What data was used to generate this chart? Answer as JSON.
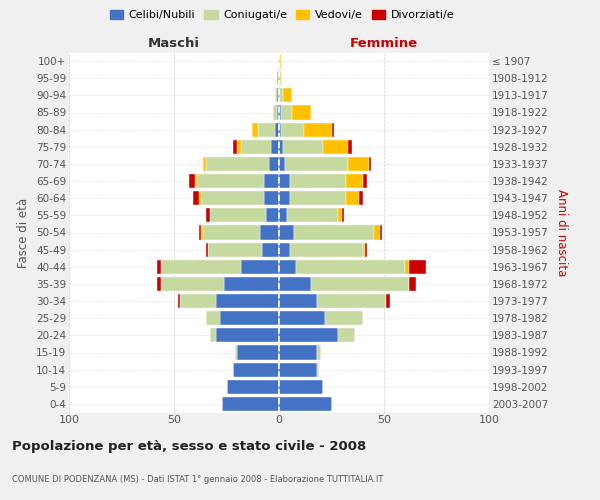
{
  "age_groups": [
    "100+",
    "95-99",
    "90-94",
    "85-89",
    "80-84",
    "75-79",
    "70-74",
    "65-69",
    "60-64",
    "55-59",
    "50-54",
    "45-49",
    "40-44",
    "35-39",
    "30-34",
    "25-29",
    "20-24",
    "15-19",
    "10-14",
    "5-9",
    "0-4"
  ],
  "birth_years": [
    "≤ 1907",
    "1908-1912",
    "1913-1917",
    "1918-1922",
    "1923-1927",
    "1928-1932",
    "1933-1937",
    "1938-1942",
    "1943-1947",
    "1948-1952",
    "1953-1957",
    "1958-1962",
    "1963-1967",
    "1968-1972",
    "1973-1977",
    "1978-1982",
    "1983-1987",
    "1988-1992",
    "1993-1997",
    "1998-2002",
    "2003-2007"
  ],
  "colors": {
    "celibi": "#4472c4",
    "coniugati": "#c5d9a0",
    "vedovi": "#ffc000",
    "divorziati": "#cc0000"
  },
  "maschi": {
    "celibi": [
      0,
      1,
      1,
      1,
      2,
      4,
      5,
      7,
      7,
      6,
      9,
      8,
      18,
      26,
      30,
      28,
      30,
      20,
      22,
      25,
      27
    ],
    "coniugati": [
      0,
      0,
      1,
      2,
      8,
      14,
      30,
      32,
      30,
      27,
      27,
      26,
      38,
      30,
      17,
      7,
      3,
      1,
      0,
      0,
      0
    ],
    "vedovi": [
      0,
      0,
      0,
      0,
      3,
      2,
      1,
      1,
      1,
      0,
      1,
      0,
      0,
      0,
      0,
      0,
      0,
      0,
      0,
      0,
      0
    ],
    "divorziati": [
      0,
      0,
      0,
      0,
      0,
      2,
      0,
      3,
      3,
      2,
      1,
      1,
      2,
      2,
      1,
      0,
      0,
      0,
      0,
      0,
      0
    ]
  },
  "femmine": {
    "celibi": [
      0,
      0,
      0,
      1,
      1,
      2,
      3,
      5,
      5,
      4,
      7,
      5,
      8,
      15,
      18,
      22,
      28,
      18,
      18,
      21,
      25
    ],
    "coniugati": [
      0,
      0,
      2,
      5,
      11,
      19,
      30,
      27,
      27,
      24,
      38,
      35,
      52,
      47,
      33,
      18,
      8,
      2,
      1,
      0,
      0
    ],
    "vedovi": [
      1,
      1,
      4,
      9,
      13,
      12,
      10,
      8,
      6,
      2,
      3,
      1,
      2,
      0,
      0,
      0,
      0,
      0,
      0,
      0,
      0
    ],
    "divorziati": [
      0,
      0,
      0,
      0,
      1,
      2,
      1,
      2,
      2,
      1,
      1,
      1,
      8,
      3,
      2,
      0,
      0,
      0,
      0,
      0,
      0
    ]
  },
  "xlim": 100,
  "title": "Popolazione per età, sesso e stato civile - 2008",
  "subtitle": "COMUNE DI PODENZANA (MS) - Dati ISTAT 1° gennaio 2008 - Elaborazione TUTTITALIA.IT",
  "ylabel_left": "Fasce di età",
  "ylabel_right": "Anni di nascita",
  "xlabel_maschi": "Maschi",
  "xlabel_femmine": "Femmine",
  "legend_labels": [
    "Celibi/Nubili",
    "Coniugati/e",
    "Vedovi/e",
    "Divorziati/e"
  ],
  "bg_color": "#f0f0f0",
  "plot_bg": "#ffffff"
}
